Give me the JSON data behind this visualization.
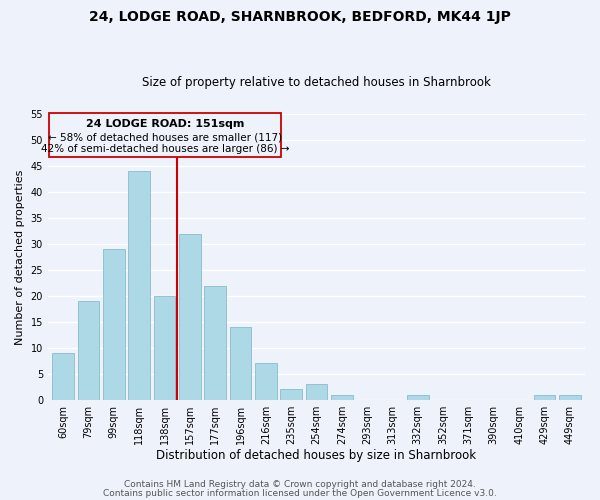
{
  "title": "24, LODGE ROAD, SHARNBROOK, BEDFORD, MK44 1JP",
  "subtitle": "Size of property relative to detached houses in Sharnbrook",
  "xlabel": "Distribution of detached houses by size in Sharnbrook",
  "ylabel": "Number of detached properties",
  "bar_labels": [
    "60sqm",
    "79sqm",
    "99sqm",
    "118sqm",
    "138sqm",
    "157sqm",
    "177sqm",
    "196sqm",
    "216sqm",
    "235sqm",
    "254sqm",
    "274sqm",
    "293sqm",
    "313sqm",
    "332sqm",
    "352sqm",
    "371sqm",
    "390sqm",
    "410sqm",
    "429sqm",
    "449sqm"
  ],
  "bar_values": [
    9,
    19,
    29,
    44,
    20,
    32,
    22,
    14,
    7,
    2,
    3,
    1,
    0,
    0,
    1,
    0,
    0,
    0,
    0,
    1,
    1
  ],
  "bar_color": "#add8e6",
  "bar_edgecolor": "#8bbccc",
  "vline_x": 4.5,
  "vline_color": "#cc0000",
  "ylim": [
    0,
    55
  ],
  "yticks": [
    0,
    5,
    10,
    15,
    20,
    25,
    30,
    35,
    40,
    45,
    50,
    55
  ],
  "footnote1": "Contains HM Land Registry data © Crown copyright and database right 2024.",
  "footnote2": "Contains public sector information licensed under the Open Government Licence v3.0.",
  "bg_color": "#eef2fa",
  "grid_color": "#ffffff",
  "title_fontsize": 10,
  "subtitle_fontsize": 8.5,
  "tick_fontsize": 7,
  "ylabel_fontsize": 8,
  "xlabel_fontsize": 8.5,
  "footnote_fontsize": 6.5,
  "ann_line1": "24 LODGE ROAD: 151sqm",
  "ann_line2": "← 58% of detached houses are smaller (117)",
  "ann_line3": "42% of semi-detached houses are larger (86) →"
}
